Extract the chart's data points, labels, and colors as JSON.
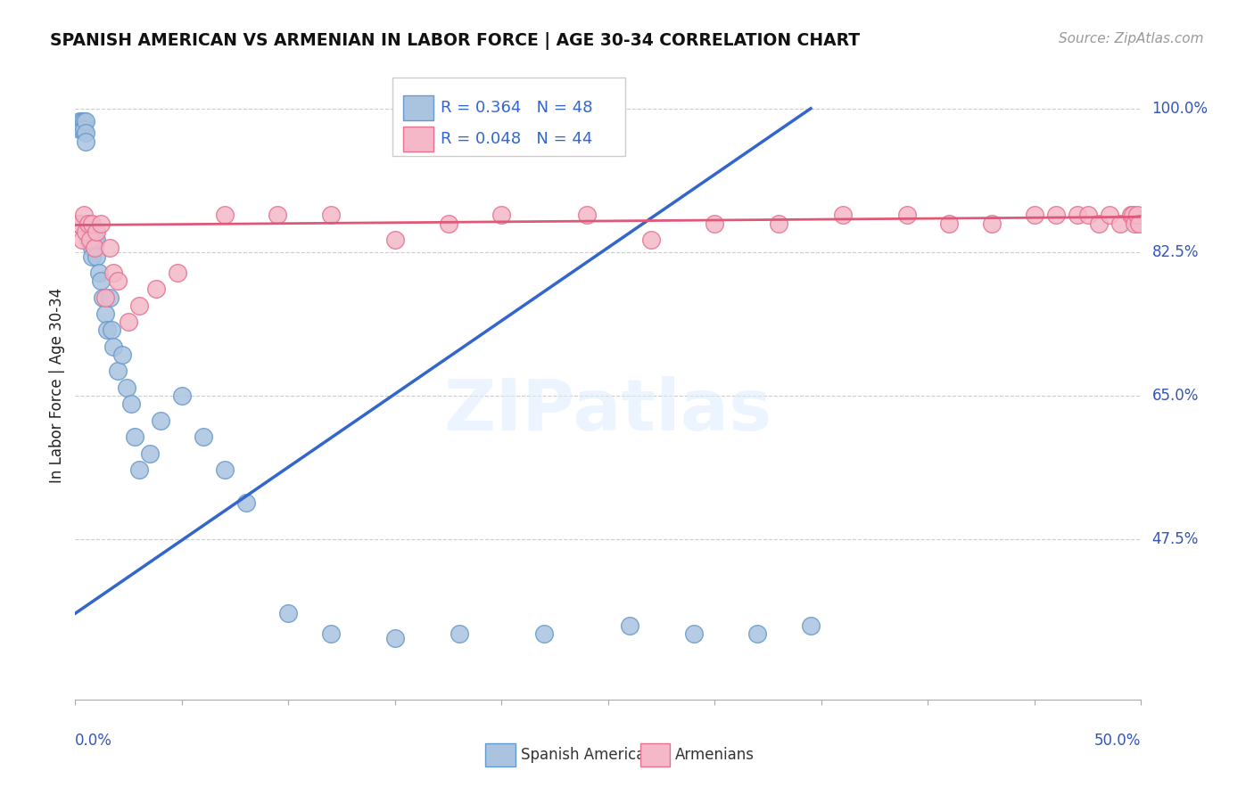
{
  "title": "SPANISH AMERICAN VS ARMENIAN IN LABOR FORCE | AGE 30-34 CORRELATION CHART",
  "source": "Source: ZipAtlas.com",
  "ylabel": "In Labor Force | Age 30-34",
  "legend_label_blue": "Spanish Americans",
  "legend_label_pink": "Armenians",
  "blue_color": "#aac4e0",
  "blue_edge": "#6699cc",
  "pink_color": "#f4b8c8",
  "pink_edge": "#e87090",
  "trendline_blue": "#3366cc",
  "trendline_pink": "#e05878",
  "r_blue": 0.364,
  "n_blue": 48,
  "r_pink": 0.048,
  "n_pink": 44,
  "xmin": 0.0,
  "xmax": 0.5,
  "ymin": 0.28,
  "ymax": 1.045,
  "ytick_vals": [
    0.475,
    0.65,
    0.825,
    1.0
  ],
  "ytick_labels": [
    "47.5%",
    "65.0%",
    "82.5%",
    "100.0%"
  ],
  "trend_blue_x0": 0.0,
  "trend_blue_y0": 0.385,
  "trend_blue_x1": 0.345,
  "trend_blue_y1": 1.0,
  "trend_pink_x0": 0.0,
  "trend_pink_y0": 0.858,
  "trend_pink_x1": 0.5,
  "trend_pink_y1": 0.868,
  "blue_x": [
    0.001,
    0.002,
    0.002,
    0.003,
    0.003,
    0.004,
    0.004,
    0.005,
    0.005,
    0.005,
    0.006,
    0.006,
    0.007,
    0.007,
    0.008,
    0.008,
    0.009,
    0.01,
    0.01,
    0.011,
    0.012,
    0.013,
    0.014,
    0.015,
    0.016,
    0.017,
    0.018,
    0.02,
    0.022,
    0.024,
    0.026,
    0.028,
    0.03,
    0.035,
    0.04,
    0.05,
    0.06,
    0.07,
    0.08,
    0.1,
    0.12,
    0.15,
    0.18,
    0.22,
    0.26,
    0.29,
    0.32,
    0.345
  ],
  "blue_y": [
    0.86,
    0.985,
    0.975,
    0.985,
    0.975,
    0.985,
    0.975,
    0.985,
    0.97,
    0.96,
    0.86,
    0.84,
    0.86,
    0.85,
    0.83,
    0.82,
    0.84,
    0.84,
    0.82,
    0.8,
    0.79,
    0.77,
    0.75,
    0.73,
    0.77,
    0.73,
    0.71,
    0.68,
    0.7,
    0.66,
    0.64,
    0.6,
    0.56,
    0.58,
    0.62,
    0.65,
    0.6,
    0.56,
    0.52,
    0.385,
    0.36,
    0.355,
    0.36,
    0.36,
    0.37,
    0.36,
    0.36,
    0.37
  ],
  "pink_x": [
    0.002,
    0.003,
    0.004,
    0.005,
    0.006,
    0.007,
    0.008,
    0.009,
    0.01,
    0.012,
    0.014,
    0.016,
    0.018,
    0.02,
    0.025,
    0.03,
    0.038,
    0.048,
    0.07,
    0.095,
    0.12,
    0.15,
    0.175,
    0.2,
    0.24,
    0.27,
    0.3,
    0.33,
    0.36,
    0.39,
    0.41,
    0.43,
    0.45,
    0.46,
    0.47,
    0.475,
    0.48,
    0.485,
    0.49,
    0.495,
    0.496,
    0.497,
    0.498,
    0.499
  ],
  "pink_y": [
    0.86,
    0.84,
    0.87,
    0.85,
    0.86,
    0.84,
    0.86,
    0.83,
    0.85,
    0.86,
    0.77,
    0.83,
    0.8,
    0.79,
    0.74,
    0.76,
    0.78,
    0.8,
    0.87,
    0.87,
    0.87,
    0.84,
    0.86,
    0.87,
    0.87,
    0.84,
    0.86,
    0.86,
    0.87,
    0.87,
    0.86,
    0.86,
    0.87,
    0.87,
    0.87,
    0.87,
    0.86,
    0.87,
    0.86,
    0.87,
    0.87,
    0.86,
    0.87,
    0.86
  ]
}
